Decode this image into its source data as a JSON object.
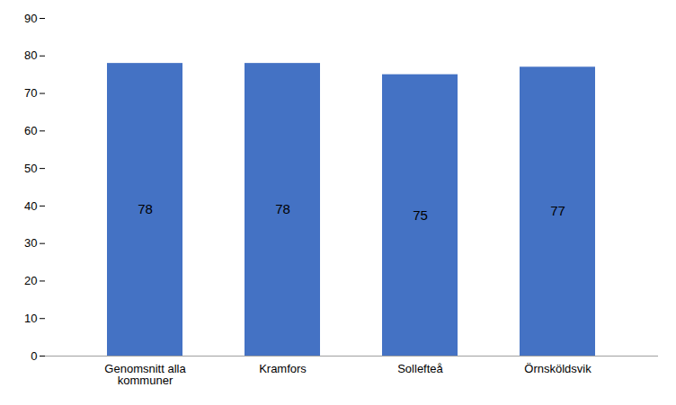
{
  "chart_data": {
    "type": "bar",
    "categories": [
      "Genomsnitt alla\nkommuner",
      "Kramfors",
      "Sollefteå",
      "Örnsköldsvik"
    ],
    "values": [
      78,
      78,
      75,
      77
    ],
    "color": "#4472C4",
    "ylim": [
      0,
      90
    ],
    "yticks": [
      0,
      10,
      20,
      30,
      40,
      50,
      60,
      70,
      80,
      90
    ],
    "grid": false,
    "data_labels": true
  }
}
